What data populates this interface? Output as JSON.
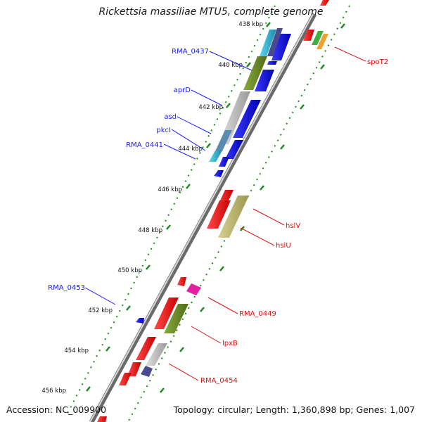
{
  "title": "Rickettsia massiliae MTU5, complete genome",
  "footer": {
    "accession": "Accession: NC_009900",
    "summary": "Topology: circular; Length: 1,360,898 bp; Genes: 1,007"
  },
  "ticks": [
    "438 kbp",
    "440 kbp",
    "442 kbp",
    "444 kbp",
    "446 kbp",
    "448 kbp",
    "450 kbp",
    "452 kbp",
    "454 kbp",
    "456 kbp"
  ],
  "gene_labels": [
    {
      "text": "RMA_0437",
      "strand": "reverse",
      "color": "#1a1aff"
    },
    {
      "text": "aprD",
      "strand": "reverse",
      "color": "#1a1aff"
    },
    {
      "text": "asd",
      "strand": "reverse",
      "color": "#1a1aff"
    },
    {
      "text": "pkcI",
      "strand": "reverse",
      "color": "#1a1aff"
    },
    {
      "text": "RMA_0441",
      "strand": "reverse",
      "color": "#1a1aff"
    },
    {
      "text": "RMA_0453",
      "strand": "reverse",
      "color": "#1a1aff"
    },
    {
      "text": "spoT2",
      "strand": "forward",
      "color": "#e01010"
    },
    {
      "text": "hslV",
      "strand": "forward",
      "color": "#e01010"
    },
    {
      "text": "hslU",
      "strand": "forward",
      "color": "#e01010"
    },
    {
      "text": "RMA_0449",
      "strand": "forward",
      "color": "#e01010"
    },
    {
      "text": "lpxB",
      "strand": "forward",
      "color": "#e01010"
    },
    {
      "text": "RMA_0454",
      "strand": "forward",
      "color": "#e01010"
    }
  ],
  "colors": {
    "forward_strand": "#ff1a1a",
    "reverse_strand": "#1f1fe6",
    "backbone": "#8a8a8a",
    "tick_marks": "#1f8a1f",
    "cog_green": "#6f8f2a",
    "cog_khaki": "#bdb870",
    "cog_magenta": "#e020a0",
    "cog_cyan": "#30b8d0",
    "cog_grey": "#b8b8b8",
    "cog_purple": "#4a4a90",
    "cog_orange": "#f0a030",
    "cog_lime": "#40b040"
  }
}
